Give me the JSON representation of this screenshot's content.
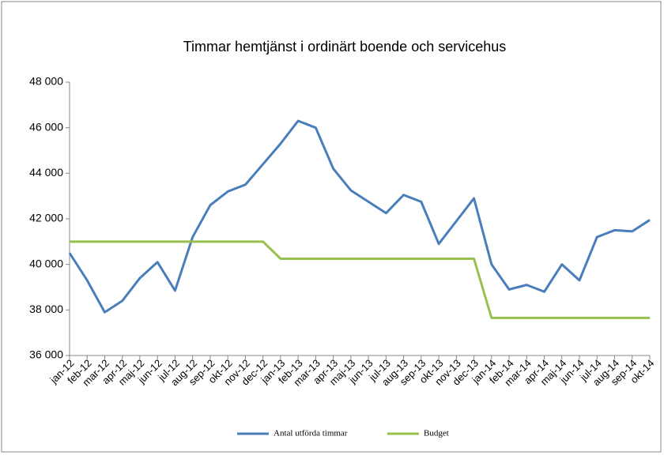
{
  "chart_data": {
    "type": "line",
    "title": "Timmar hemtjänst i ordinärt boende och servicehus",
    "categories": [
      "jan-12",
      "feb-12",
      "mar-12",
      "apr-12",
      "maj-12",
      "jun-12",
      "jul-12",
      "aug-12",
      "sep-12",
      "okt-12",
      "nov-12",
      "dec-12",
      "jan-13",
      "feb-13",
      "mar-13",
      "apr-13",
      "maj-13",
      "jun-13",
      "jul-13",
      "aug-13",
      "sep-13",
      "okt-13",
      "nov-13",
      "dec-13",
      "jan-14",
      "feb-14",
      "mar-14",
      "apr-14",
      "maj-14",
      "jun-14",
      "jul-14",
      "aug-14",
      "sep-14",
      "okt-14"
    ],
    "series": [
      {
        "name": "Antal utförda timmar",
        "color": "#4a7ebb",
        "values": [
          40500,
          39300,
          37900,
          38400,
          39400,
          40100,
          38850,
          41200,
          42600,
          43200,
          43500,
          44400,
          45300,
          46300,
          46000,
          44200,
          43250,
          42750,
          42250,
          43050,
          42750,
          40900,
          41900,
          42900,
          40000,
          38900,
          39100,
          38800,
          40000,
          39300,
          41200,
          41500,
          41450,
          41950
        ]
      },
      {
        "name": "Budget",
        "color": "#98c04c",
        "values": [
          41000,
          41000,
          41000,
          41000,
          41000,
          41000,
          41000,
          41000,
          41000,
          41000,
          41000,
          41000,
          40250,
          40250,
          40250,
          40250,
          40250,
          40250,
          40250,
          40250,
          40250,
          40250,
          40250,
          40250,
          37650,
          37650,
          37650,
          37650,
          37650,
          37650,
          37650,
          37650,
          37650,
          37650
        ]
      }
    ],
    "ylim": [
      36000,
      48000
    ],
    "yticks": [
      {
        "value": 36000,
        "label": "36 000"
      },
      {
        "value": 38000,
        "label": "38 000"
      },
      {
        "value": 40000,
        "label": "40 000"
      },
      {
        "value": 42000,
        "label": "42 000"
      },
      {
        "value": 44000,
        "label": "44 000"
      },
      {
        "value": 46000,
        "label": "46 000"
      },
      {
        "value": 48000,
        "label": "48 000"
      }
    ],
    "grid": false,
    "legend": "bottom"
  }
}
